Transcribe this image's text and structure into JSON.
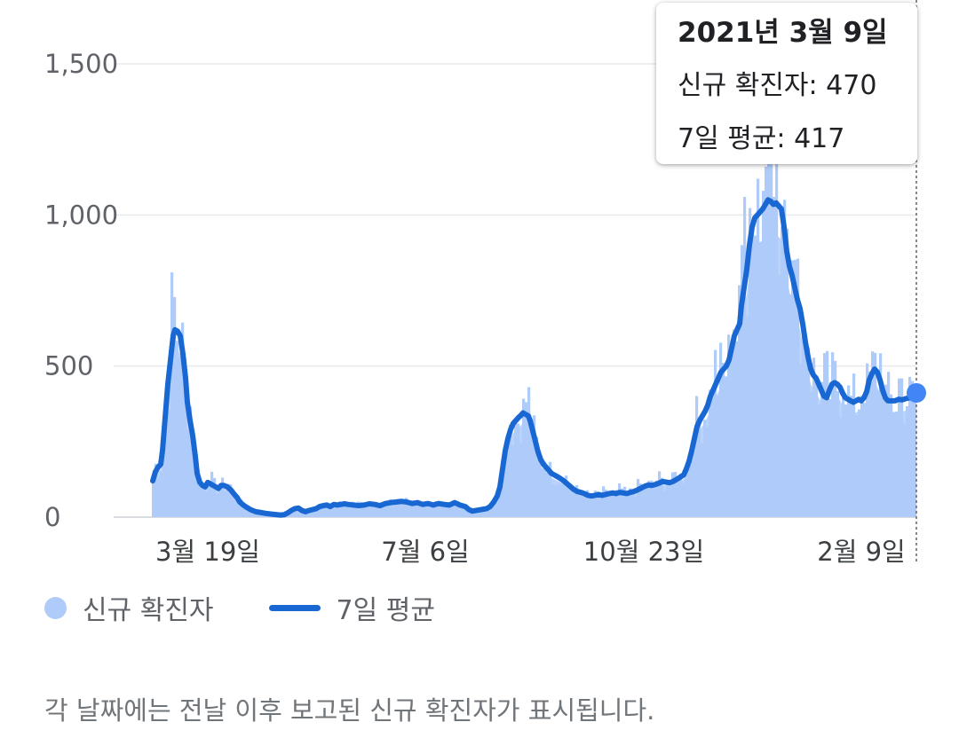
{
  "chart_data": {
    "type": "bar+line",
    "ylim": [
      0,
      1500
    ],
    "yticks": [
      "1,500",
      "1,000",
      "500",
      "0"
    ],
    "ytick_values": [
      1500,
      1000,
      500,
      0
    ],
    "xtick_labels": [
      "3월 19일",
      "7월 6일",
      "10월 23일",
      "2월 9일"
    ],
    "grid": true,
    "bar_color": "#aecbfa",
    "line_color": "#1967d2",
    "marker_color": "#4285f4",
    "series": [
      {
        "name": "신규 확진자",
        "kind": "bar"
      },
      {
        "name": "7일 평균",
        "kind": "line",
        "points": [
          [
            0,
            120
          ],
          [
            3,
            150
          ],
          [
            6,
            165
          ],
          [
            9,
            175
          ],
          [
            11,
            220
          ],
          [
            14,
            330
          ],
          [
            17,
            440
          ],
          [
            20,
            520
          ],
          [
            23,
            600
          ],
          [
            25,
            620
          ],
          [
            28,
            615
          ],
          [
            31,
            600
          ],
          [
            34,
            540
          ],
          [
            37,
            460
          ],
          [
            39,
            380
          ],
          [
            42,
            320
          ],
          [
            45,
            270
          ],
          [
            48,
            200
          ],
          [
            50,
            145
          ],
          [
            53,
            115
          ],
          [
            56,
            105
          ],
          [
            59,
            100
          ],
          [
            62,
            115
          ],
          [
            65,
            110
          ],
          [
            68,
            105
          ],
          [
            71,
            100
          ],
          [
            74,
            95
          ],
          [
            77,
            105
          ],
          [
            80,
            105
          ],
          [
            84,
            100
          ],
          [
            88,
            90
          ],
          [
            92,
            75
          ],
          [
            95,
            65
          ],
          [
            98,
            50
          ],
          [
            102,
            40
          ],
          [
            106,
            32
          ],
          [
            110,
            25
          ],
          [
            116,
            18
          ],
          [
            122,
            15
          ],
          [
            128,
            12
          ],
          [
            134,
            10
          ],
          [
            140,
            8
          ],
          [
            144,
            7
          ],
          [
            148,
            8
          ],
          [
            152,
            14
          ],
          [
            156,
            22
          ],
          [
            160,
            28
          ],
          [
            164,
            30
          ],
          [
            168,
            22
          ],
          [
            172,
            18
          ],
          [
            176,
            22
          ],
          [
            180,
            25
          ],
          [
            184,
            28
          ],
          [
            188,
            35
          ],
          [
            192,
            38
          ],
          [
            196,
            40
          ],
          [
            200,
            35
          ],
          [
            204,
            42
          ],
          [
            208,
            40
          ],
          [
            212,
            42
          ],
          [
            216,
            44
          ],
          [
            220,
            42
          ],
          [
            226,
            40
          ],
          [
            232,
            38
          ],
          [
            238,
            40
          ],
          [
            244,
            44
          ],
          [
            250,
            42
          ],
          [
            256,
            38
          ],
          [
            262,
            45
          ],
          [
            268,
            48
          ],
          [
            274,
            50
          ],
          [
            280,
            52
          ],
          [
            286,
            50
          ],
          [
            292,
            45
          ],
          [
            298,
            48
          ],
          [
            304,
            42
          ],
          [
            310,
            45
          ],
          [
            316,
            40
          ],
          [
            322,
            45
          ],
          [
            328,
            42
          ],
          [
            334,
            40
          ],
          [
            340,
            48
          ],
          [
            346,
            40
          ],
          [
            352,
            35
          ],
          [
            356,
            25
          ],
          [
            360,
            20
          ],
          [
            364,
            22
          ],
          [
            368,
            24
          ],
          [
            372,
            26
          ],
          [
            376,
            28
          ],
          [
            380,
            35
          ],
          [
            384,
            50
          ],
          [
            388,
            70
          ],
          [
            391,
            100
          ],
          [
            394,
            160
          ],
          [
            397,
            220
          ],
          [
            400,
            260
          ],
          [
            403,
            290
          ],
          [
            406,
            310
          ],
          [
            409,
            320
          ],
          [
            412,
            330
          ],
          [
            414,
            335
          ],
          [
            417,
            345
          ],
          [
            420,
            340
          ],
          [
            423,
            335
          ],
          [
            425,
            320
          ],
          [
            428,
            285
          ],
          [
            431,
            250
          ],
          [
            434,
            215
          ],
          [
            437,
            190
          ],
          [
            440,
            175
          ],
          [
            443,
            165
          ],
          [
            446,
            155
          ],
          [
            449,
            145
          ],
          [
            452,
            140
          ],
          [
            455,
            135
          ],
          [
            458,
            130
          ],
          [
            462,
            122
          ],
          [
            466,
            112
          ],
          [
            470,
            102
          ],
          [
            474,
            92
          ],
          [
            478,
            85
          ],
          [
            482,
            82
          ],
          [
            486,
            78
          ],
          [
            490,
            72
          ],
          [
            494,
            70
          ],
          [
            498,
            72
          ],
          [
            502,
            75
          ],
          [
            506,
            72
          ],
          [
            510,
            75
          ],
          [
            514,
            78
          ],
          [
            518,
            80
          ],
          [
            522,
            78
          ],
          [
            526,
            82
          ],
          [
            530,
            80
          ],
          [
            534,
            78
          ],
          [
            538,
            82
          ],
          [
            542,
            85
          ],
          [
            546,
            90
          ],
          [
            550,
            96
          ],
          [
            554,
            102
          ],
          [
            558,
            106
          ],
          [
            562,
            105
          ],
          [
            566,
            108
          ],
          [
            570,
            112
          ],
          [
            574,
            118
          ],
          [
            578,
            116
          ],
          [
            582,
            114
          ],
          [
            586,
            118
          ],
          [
            590,
            125
          ],
          [
            594,
            132
          ],
          [
            598,
            140
          ],
          [
            601,
            160
          ],
          [
            604,
            185
          ],
          [
            607,
            220
          ],
          [
            610,
            260
          ],
          [
            613,
            300
          ],
          [
            616,
            320
          ],
          [
            619,
            335
          ],
          [
            622,
            350
          ],
          [
            625,
            370
          ],
          [
            628,
            400
          ],
          [
            631,
            420
          ],
          [
            634,
            440
          ],
          [
            637,
            460
          ],
          [
            640,
            480
          ],
          [
            643,
            490
          ],
          [
            646,
            500
          ],
          [
            649,
            520
          ],
          [
            652,
            560
          ],
          [
            655,
            600
          ],
          [
            658,
            620
          ],
          [
            661,
            640
          ],
          [
            663,
            700
          ],
          [
            666,
            760
          ],
          [
            669,
            820
          ],
          [
            672,
            900
          ],
          [
            675,
            960
          ],
          [
            678,
            990
          ],
          [
            681,
            1000
          ],
          [
            684,
            1010
          ],
          [
            687,
            1020
          ],
          [
            690,
            1035
          ],
          [
            693,
            1050
          ],
          [
            696,
            1045
          ],
          [
            699,
            1035
          ],
          [
            702,
            1040
          ],
          [
            705,
            1030
          ],
          [
            708,
            1020
          ],
          [
            711,
            960
          ],
          [
            714,
            880
          ],
          [
            717,
            830
          ],
          [
            720,
            800
          ],
          [
            723,
            760
          ],
          [
            726,
            720
          ],
          [
            729,
            690
          ],
          [
            732,
            640
          ],
          [
            735,
            580
          ],
          [
            738,
            530
          ],
          [
            741,
            490
          ],
          [
            744,
            470
          ],
          [
            747,
            460
          ],
          [
            750,
            440
          ],
          [
            753,
            420
          ],
          [
            756,
            400
          ],
          [
            759,
            395
          ],
          [
            762,
            420
          ],
          [
            765,
            440
          ],
          [
            768,
            445
          ],
          [
            771,
            440
          ],
          [
            774,
            430
          ],
          [
            777,
            410
          ],
          [
            780,
            395
          ],
          [
            783,
            390
          ],
          [
            786,
            385
          ],
          [
            789,
            380
          ],
          [
            792,
            385
          ],
          [
            795,
            390
          ],
          [
            798,
            385
          ],
          [
            801,
            395
          ],
          [
            804,
            415
          ],
          [
            807,
            455
          ],
          [
            810,
            475
          ],
          [
            813,
            490
          ],
          [
            816,
            480
          ],
          [
            819,
            455
          ],
          [
            822,
            420
          ],
          [
            825,
            395
          ],
          [
            828,
            385
          ],
          [
            832,
            385
          ],
          [
            836,
            385
          ],
          [
            840,
            390
          ],
          [
            844,
            388
          ],
          [
            848,
            392
          ],
          [
            852,
            395
          ],
          [
            856,
            400
          ],
          [
            860,
            410
          ]
        ],
        "marker": {
          "x": 860,
          "y": 417
        }
      }
    ]
  },
  "tooltip": {
    "date": "2021년 3월 9일",
    "new_cases": "신규 확진자: 470",
    "avg": "7일 평균: 417"
  },
  "legend": {
    "bars_label": "신규 확진자",
    "line_label": "7일 평균"
  },
  "footnote": "각 날짜에는 전날 이후 보고된 신규 확진자가 표시됩니다."
}
